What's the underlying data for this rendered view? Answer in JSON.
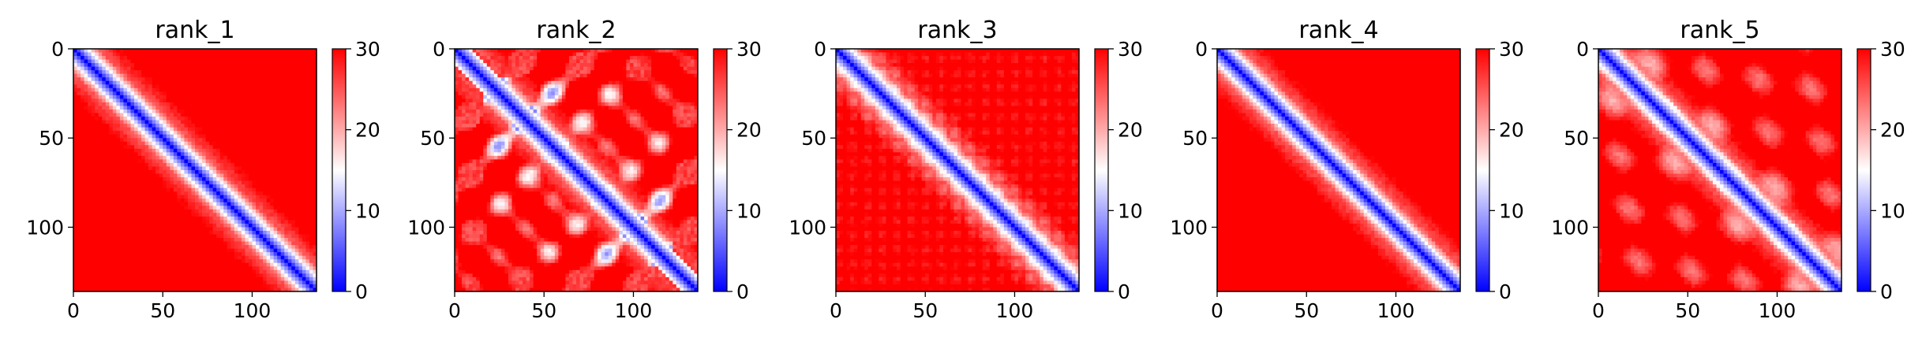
{
  "chart_data": [
    {
      "type": "heatmap",
      "title": "rank_1",
      "pattern": "uniform",
      "matrix_size": 136,
      "x_ticks": [
        0,
        50,
        100
      ],
      "y_ticks": [
        0,
        50,
        100
      ],
      "colorbar": {
        "min": 0,
        "max": 30,
        "ticks": [
          0,
          10,
          20,
          30
        ],
        "colors": [
          "#0000ff",
          "#ffffff",
          "#ff0000"
        ]
      }
    },
    {
      "type": "heatmap",
      "title": "rank_2",
      "pattern": "blotchy",
      "matrix_size": 136,
      "x_ticks": [
        0,
        50,
        100
      ],
      "y_ticks": [
        0,
        50,
        100
      ],
      "colorbar": {
        "min": 0,
        "max": 30,
        "ticks": [
          0,
          10,
          20,
          30
        ],
        "colors": [
          "#0000ff",
          "#ffffff",
          "#ff0000"
        ]
      }
    },
    {
      "type": "heatmap",
      "title": "rank_3",
      "pattern": "textured",
      "matrix_size": 136,
      "x_ticks": [
        0,
        50,
        100
      ],
      "y_ticks": [
        0,
        50,
        100
      ],
      "colorbar": {
        "min": 0,
        "max": 30,
        "ticks": [
          0,
          10,
          20,
          30
        ],
        "colors": [
          "#0000ff",
          "#ffffff",
          "#ff0000"
        ]
      }
    },
    {
      "type": "heatmap",
      "title": "rank_4",
      "pattern": "uniform",
      "matrix_size": 136,
      "x_ticks": [
        0,
        50,
        100
      ],
      "y_ticks": [
        0,
        50,
        100
      ],
      "colorbar": {
        "min": 0,
        "max": 30,
        "ticks": [
          0,
          10,
          20,
          30
        ],
        "colors": [
          "#0000ff",
          "#ffffff",
          "#ff0000"
        ]
      }
    },
    {
      "type": "heatmap",
      "title": "rank_5",
      "pattern": "rings",
      "matrix_size": 136,
      "x_ticks": [
        0,
        50,
        100
      ],
      "y_ticks": [
        0,
        50,
        100
      ],
      "colorbar": {
        "min": 0,
        "max": 30,
        "ticks": [
          0,
          10,
          20,
          30
        ],
        "colors": [
          "#0000ff",
          "#ffffff",
          "#ff0000"
        ]
      }
    }
  ]
}
